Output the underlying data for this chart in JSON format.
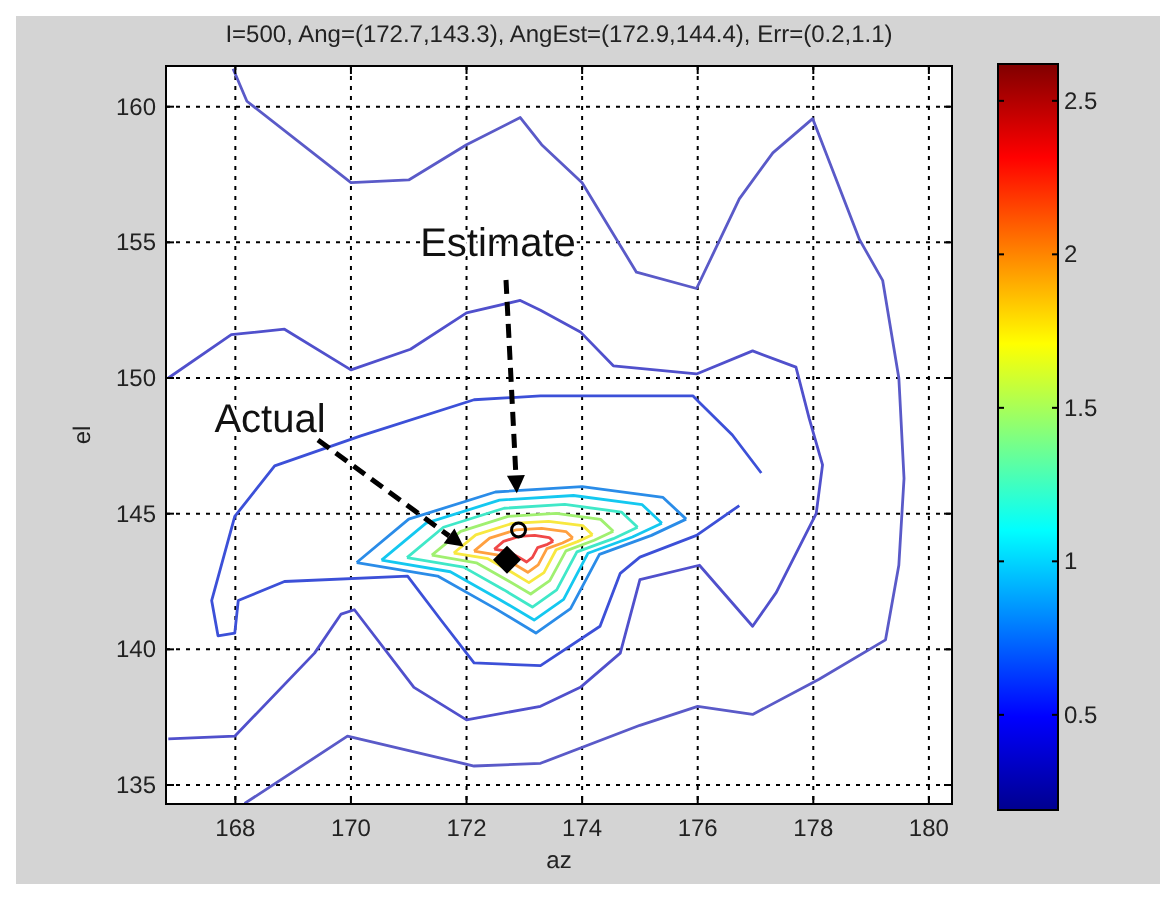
{
  "chart_data": {
    "type": "line",
    "title": "I=500, Ang=(172.7,143.3), AngEst=(172.9,144.4), Err=(0.2,1.1)",
    "xlabel": "az",
    "ylabel": "el",
    "xlim": [
      166.8,
      180.4
    ],
    "xticks": [
      168,
      170,
      172,
      174,
      176,
      178,
      180
    ],
    "ylim": [
      134.3,
      161.5
    ],
    "yticks": [
      135,
      140,
      145,
      150,
      155,
      160
    ],
    "grid": true,
    "clim": [
      0.19,
      2.62
    ],
    "cticks": [
      0.5,
      1,
      1.5,
      2,
      2.5
    ],
    "series": [
      {
        "color": "#5a5ac8",
        "x": [
          167.96,
          168.2,
          170.0,
          171.0,
          172.0,
          172.93,
          173.3,
          174.0,
          174.94,
          175.98,
          176.72,
          177.3,
          177.99,
          178.8,
          179.2,
          179.48,
          179.5,
          179.57,
          179.48,
          179.25,
          178.1,
          176.95,
          176.0,
          175.0,
          173.28,
          172.13,
          169.94,
          168.16
        ],
        "values": [
          161.4,
          160.2,
          157.2,
          157.3,
          158.6,
          159.6,
          158.6,
          157.2,
          153.9,
          153.3,
          156.6,
          158.3,
          159.56,
          155.1,
          153.6,
          150.0,
          149.2,
          146.3,
          143.1,
          140.35,
          138.9,
          137.6,
          137.9,
          137.2,
          135.8,
          135.7,
          136.8,
          134.32
        ]
      },
      {
        "color": "#5050cc",
        "x": [
          166.84,
          167.93,
          168.85,
          170.0,
          171.03,
          172.0,
          172.93,
          173.28,
          173.97,
          174.54,
          175.98,
          176.95,
          177.7,
          177.93,
          178.16,
          178.05,
          177.36,
          176.95,
          176.03,
          175.0,
          174.66,
          173.97,
          173.28,
          172.0,
          171.09,
          170.06,
          169.83,
          169.37,
          167.99,
          166.84
        ],
        "values": [
          150.0,
          151.6,
          151.8,
          150.3,
          151.06,
          152.4,
          152.86,
          152.5,
          151.7,
          150.45,
          150.15,
          151.0,
          150.4,
          148.5,
          146.8,
          145.0,
          142.1,
          140.85,
          143.1,
          142.57,
          139.86,
          138.6,
          137.9,
          137.4,
          138.6,
          141.46,
          141.3,
          139.86,
          136.8,
          136.7
        ]
      },
      {
        "color": "#3c50d8",
        "x": [
          177.1,
          176.6,
          176.03,
          175.92,
          173.28,
          172.13,
          170.17,
          168.68,
          167.99,
          167.59,
          167.7,
          167.99,
          168.05,
          168.85,
          170.98,
          171.55,
          172.13,
          173.28,
          174.31,
          174.66,
          175.0,
          175.98,
          176.72
        ],
        "values": [
          146.5,
          147.9,
          149.1,
          149.34,
          149.34,
          149.2,
          147.87,
          146.76,
          144.9,
          141.8,
          140.5,
          140.6,
          141.8,
          142.5,
          142.7,
          141.1,
          139.5,
          139.4,
          140.85,
          142.8,
          143.4,
          144.2,
          145.3
        ]
      },
      {
        "color": "#2a8ce8",
        "x": [
          170.1,
          171.0,
          172.5,
          174.0,
          175.4,
          175.8
        ],
        "values": [
          143.2,
          144.8,
          145.8,
          146.0,
          145.6,
          144.8
        ]
      },
      {
        "color": "#2a8ce8",
        "x": [
          170.1,
          171.5,
          172.5,
          173.2,
          173.8,
          174.3,
          175.2,
          175.8
        ],
        "values": [
          143.2,
          142.7,
          141.5,
          140.6,
          141.5,
          143.5,
          144.2,
          144.8
        ]
      },
      {
        "color": "#14c8f0",
        "x": [
          170.53,
          171.3,
          172.57,
          173.85,
          175.04,
          175.38
        ],
        "values": [
          143.29,
          144.65,
          145.5,
          145.67,
          145.33,
          144.65
        ]
      },
      {
        "color": "#14c8f0",
        "x": [
          170.53,
          171.72,
          172.57,
          173.17,
          173.68,
          174.1,
          174.87,
          175.38
        ],
        "values": [
          143.29,
          142.86,
          141.84,
          141.08,
          141.84,
          143.54,
          144.14,
          144.65
        ]
      },
      {
        "color": "#40e8c8",
        "x": [
          170.97,
          171.6,
          172.65,
          173.7,
          174.68,
          174.96
        ],
        "values": [
          143.38,
          144.5,
          145.2,
          145.34,
          145.06,
          144.5
        ]
      },
      {
        "color": "#40e8c8",
        "x": [
          170.97,
          171.95,
          172.65,
          173.14,
          173.56,
          173.91,
          174.54,
          174.96
        ],
        "values": [
          143.38,
          143.03,
          142.19,
          141.56,
          142.19,
          143.59,
          144.08,
          144.5
        ]
      },
      {
        "color": "#a0f070",
        "x": [
          171.4,
          171.9,
          172.72,
          173.55,
          174.32,
          174.54
        ],
        "values": [
          143.47,
          144.35,
          144.9,
          145.01,
          144.79,
          144.35
        ]
      },
      {
        "color": "#a0f070",
        "x": [
          171.4,
          172.17,
          172.72,
          173.11,
          173.44,
          173.72,
          174.21,
          174.54
        ],
        "values": [
          143.47,
          143.19,
          142.53,
          142.04,
          142.53,
          143.63,
          144.02,
          144.35
        ]
      },
      {
        "color": "#f8e840",
        "x": [
          171.78,
          172.16,
          172.79,
          173.42,
          174.01,
          174.18
        ],
        "values": [
          143.55,
          144.22,
          144.64,
          144.72,
          144.56,
          144.22
        ]
      },
      {
        "color": "#f8e840",
        "x": [
          171.78,
          172.37,
          172.79,
          173.08,
          173.34,
          173.55,
          173.92,
          174.18
        ],
        "values": [
          143.55,
          143.34,
          142.83,
          142.46,
          142.83,
          143.67,
          143.97,
          144.22
        ]
      },
      {
        "color": "#ffa040",
        "x": [
          172.13,
          172.4,
          172.85,
          173.3,
          173.72,
          173.84
        ],
        "values": [
          143.62,
          144.1,
          144.4,
          144.46,
          144.34,
          144.1
        ]
      },
      {
        "color": "#ffa040",
        "x": [
          172.13,
          172.55,
          172.85,
          173.06,
          173.24,
          173.39,
          173.66,
          173.84
        ],
        "values": [
          143.62,
          143.47,
          143.11,
          142.84,
          143.11,
          143.71,
          143.92,
          144.1
        ]
      },
      {
        "color": "#f04848",
        "x": [
          172.48,
          172.64,
          172.91,
          173.18,
          173.43,
          173.5
        ],
        "values": [
          143.69,
          143.98,
          144.16,
          144.2,
          144.12,
          143.98
        ]
      },
      {
        "color": "#f04848",
        "x": [
          172.48,
          172.73,
          172.91,
          173.04,
          173.14,
          173.23,
          173.4,
          173.5
        ],
        "values": [
          143.69,
          143.6,
          143.39,
          143.22,
          143.39,
          143.75,
          143.87,
          143.98
        ]
      },
      {
        "type": "scatter",
        "color": "#000000",
        "marker": "diamond",
        "x": [
          172.7
        ],
        "values": [
          143.3
        ]
      },
      {
        "type": "scatter",
        "color": "#000000",
        "marker": "circle",
        "x": [
          172.9
        ],
        "values": [
          144.4
        ]
      }
    ],
    "annotations": [
      {
        "text": "Actual",
        "x": 171.95,
        "y": 143.79
      },
      {
        "text": "Estimate",
        "x": 172.87,
        "y": 145.75
      }
    ]
  }
}
